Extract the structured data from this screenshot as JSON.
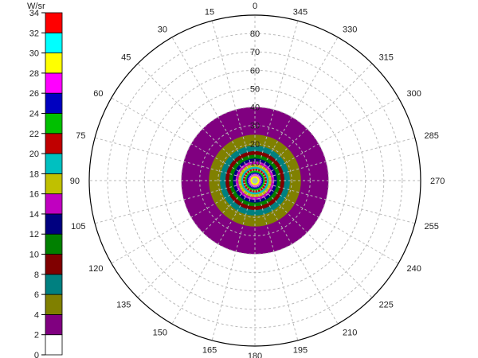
{
  "chart_data": {
    "type": "heatmap",
    "subtype": "polar-intensity",
    "colorbar": {
      "title": "W/sr",
      "ticks": [
        0,
        2,
        4,
        6,
        8,
        10,
        12,
        14,
        16,
        18,
        20,
        22,
        24,
        26,
        28,
        30,
        32,
        34
      ],
      "bins": [
        {
          "range": [
            0,
            2
          ],
          "color": "#ffffff"
        },
        {
          "range": [
            2,
            4
          ],
          "color": "#800080"
        },
        {
          "range": [
            4,
            6
          ],
          "color": "#808000"
        },
        {
          "range": [
            6,
            8
          ],
          "color": "#008080"
        },
        {
          "range": [
            8,
            10
          ],
          "color": "#800000"
        },
        {
          "range": [
            10,
            12
          ],
          "color": "#008000"
        },
        {
          "range": [
            12,
            14
          ],
          "color": "#000080"
        },
        {
          "range": [
            14,
            16
          ],
          "color": "#c000c0"
        },
        {
          "range": [
            16,
            18
          ],
          "color": "#c0c000"
        },
        {
          "range": [
            18,
            20
          ],
          "color": "#00c0c0"
        },
        {
          "range": [
            20,
            22
          ],
          "color": "#c00000"
        },
        {
          "range": [
            22,
            24
          ],
          "color": "#00c000"
        },
        {
          "range": [
            24,
            26
          ],
          "color": "#0000c0"
        },
        {
          "range": [
            26,
            28
          ],
          "color": "#ff00ff"
        },
        {
          "range": [
            28,
            30
          ],
          "color": "#ffff00"
        },
        {
          "range": [
            30,
            32
          ],
          "color": "#00ffff"
        },
        {
          "range": [
            32,
            34
          ],
          "color": "#ff0000"
        }
      ]
    },
    "radial_axis": {
      "ticks": [
        10,
        20,
        30,
        40,
        50,
        60,
        70,
        80
      ],
      "labels": [
        "10",
        "20",
        "30",
        "40",
        "50",
        "60",
        "70",
        "80"
      ],
      "range": [
        0,
        90
      ]
    },
    "angular_axis": {
      "labels": [
        "0",
        "15",
        "30",
        "45",
        "60",
        "75",
        "90",
        "105",
        "120",
        "135",
        "150",
        "165",
        "180",
        "195",
        "210",
        "225",
        "240",
        "255",
        "270",
        "285",
        "300",
        "315",
        "330",
        "345"
      ],
      "zero_location": "top",
      "direction": "counterclockwise"
    },
    "grid": true,
    "intensity_profile": [
      {
        "theta_max": 40,
        "value": 3
      },
      {
        "theta_max": 25,
        "value": 5
      },
      {
        "theta_max": 19,
        "value": 7
      },
      {
        "theta_max": 16,
        "value": 9
      },
      {
        "theta_max": 14,
        "value": 11
      },
      {
        "theta_max": 12,
        "value": 13
      },
      {
        "theta_max": 10.5,
        "value": 15
      },
      {
        "theta_max": 9,
        "value": 17
      },
      {
        "theta_max": 7.5,
        "value": 19
      },
      {
        "theta_max": 6.5,
        "value": 21
      },
      {
        "theta_max": 5.5,
        "value": 23
      },
      {
        "theta_max": 4.5,
        "value": 25
      },
      {
        "theta_max": 3.5,
        "value": 27
      },
      {
        "theta_max": 2.5,
        "value": 29
      },
      {
        "theta_max": 1.5,
        "value": 31
      },
      {
        "theta_max": 0.8,
        "value": 33
      }
    ]
  }
}
